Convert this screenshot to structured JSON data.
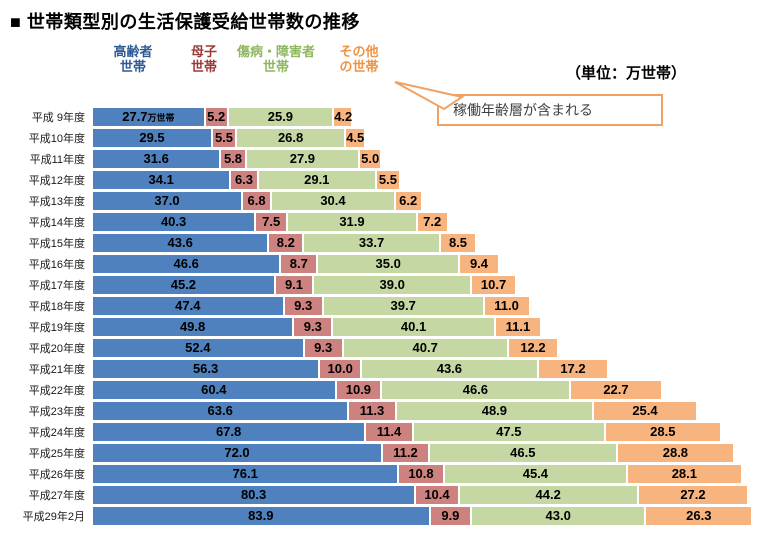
{
  "title": "■ 世帯類型別の生活保護受給世帯数の推移",
  "unit_label": "（単位：万世帯）",
  "annotation": {
    "text": "稼働年齢層が含まれる",
    "border_color": "#f0a264"
  },
  "legend": {
    "items": [
      {
        "key": "elderly",
        "lines": [
          "高齢者",
          "世帯"
        ],
        "color": "#2f5b95"
      },
      {
        "key": "mother",
        "lines": [
          "母子",
          "世帯"
        ],
        "color": "#9c3a37"
      },
      {
        "key": "disabled",
        "lines": [
          "傷病・障害者",
          "世帯"
        ],
        "color": "#8fb75f"
      },
      {
        "key": "other",
        "lines": [
          "その他",
          "の世帯"
        ],
        "color": "#ee9243"
      }
    ]
  },
  "chart_data": {
    "type": "bar",
    "orientation": "horizontal-stacked",
    "title": "世帯類型別の生活保護受給世帯数の推移",
    "unit": "万世帯",
    "first_value_suffix": "万世帯",
    "categories": [
      "平成 9年度",
      "平成10年度",
      "平成11年度",
      "平成12年度",
      "平成13年度",
      "平成14年度",
      "平成15年度",
      "平成16年度",
      "平成17年度",
      "平成18年度",
      "平成19年度",
      "平成20年度",
      "平成21年度",
      "平成22年度",
      "平成23年度",
      "平成24年度",
      "平成25年度",
      "平成26年度",
      "平成27年度",
      "平成29年2月"
    ],
    "series": [
      {
        "key": "elderly",
        "name": "高齢者世帯",
        "color": "#4e81bd",
        "values": [
          27.7,
          29.5,
          31.6,
          34.1,
          37.0,
          40.3,
          43.6,
          46.6,
          45.2,
          47.4,
          49.8,
          52.4,
          56.3,
          60.4,
          63.6,
          67.8,
          72.0,
          76.1,
          80.3,
          83.9
        ]
      },
      {
        "key": "mother",
        "name": "母子世帯",
        "color": "#cd8280",
        "values": [
          5.2,
          5.5,
          5.8,
          6.3,
          6.8,
          7.5,
          8.2,
          8.7,
          9.1,
          9.3,
          9.3,
          9.3,
          10.0,
          10.9,
          11.3,
          11.4,
          11.2,
          10.8,
          10.4,
          9.9
        ]
      },
      {
        "key": "disabled",
        "name": "傷病・障害者世帯",
        "color": "#c5d7a2",
        "values": [
          25.9,
          26.8,
          27.9,
          29.1,
          30.4,
          31.9,
          33.7,
          35.0,
          39.0,
          39.7,
          40.1,
          40.7,
          43.6,
          46.6,
          48.9,
          47.5,
          46.5,
          45.4,
          44.2,
          43.0
        ]
      },
      {
        "key": "other",
        "name": "その他の世帯",
        "color": "#f8b47f",
        "values": [
          4.2,
          4.5,
          5.0,
          5.5,
          6.2,
          7.2,
          8.5,
          9.4,
          10.7,
          11.0,
          11.1,
          12.2,
          17.2,
          22.7,
          25.4,
          28.5,
          28.8,
          28.1,
          27.2,
          26.3
        ]
      }
    ],
    "value_labels": "inside-each-segment, one decimal",
    "xlim": [
      0,
      170
    ],
    "grid": false,
    "legend_position": "top"
  }
}
